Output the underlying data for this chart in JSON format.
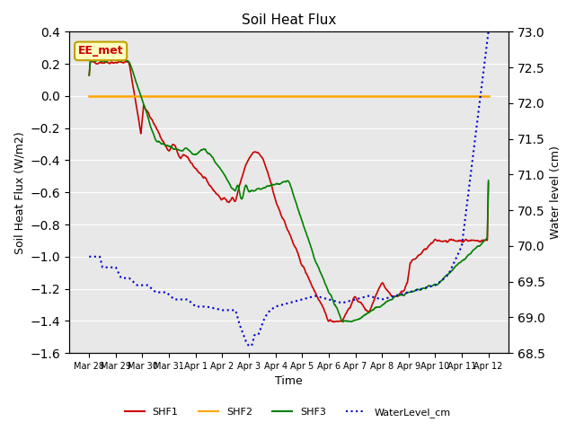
{
  "title": "Soil Heat Flux",
  "xlabel": "Time",
  "ylabel_left": "Soil Heat Flux (W/m2)",
  "ylabel_right": "Water level (cm)",
  "annotation": "EE_met",
  "ylim_left": [
    -1.6,
    0.4
  ],
  "ylim_right": [
    68.5,
    73.0
  ],
  "yticks_left": [
    -1.6,
    -1.4,
    -1.2,
    -1.0,
    -0.8,
    -0.6,
    -0.4,
    -0.2,
    0.0,
    0.2,
    0.4
  ],
  "yticks_right": [
    68.5,
    69.0,
    69.5,
    70.0,
    70.5,
    71.0,
    71.5,
    72.0,
    72.5,
    73.0
  ],
  "xtick_labels": [
    "Mar 28",
    "Mar 29",
    "Mar 30",
    "Mar 31",
    "Apr 1",
    "Apr 2",
    "Apr 3",
    "Apr 4",
    "Apr 5",
    "Apr 6",
    "Apr 7",
    "Apr 8",
    "Apr 9",
    "Apr 10",
    "Apr 11",
    "Apr 12"
  ],
  "colors": {
    "SHF1": "#cc0000",
    "SHF2": "#ffa500",
    "SHF3": "#008000",
    "WaterLevel_cm": "#0000cc",
    "background": "#e8e8e8",
    "annotation_bg": "#ffffc0",
    "annotation_border": "#c0a000",
    "annotation_text": "#cc0000"
  },
  "legend": [
    "SHF1",
    "SHF2",
    "SHF3",
    "WaterLevel_cm"
  ]
}
